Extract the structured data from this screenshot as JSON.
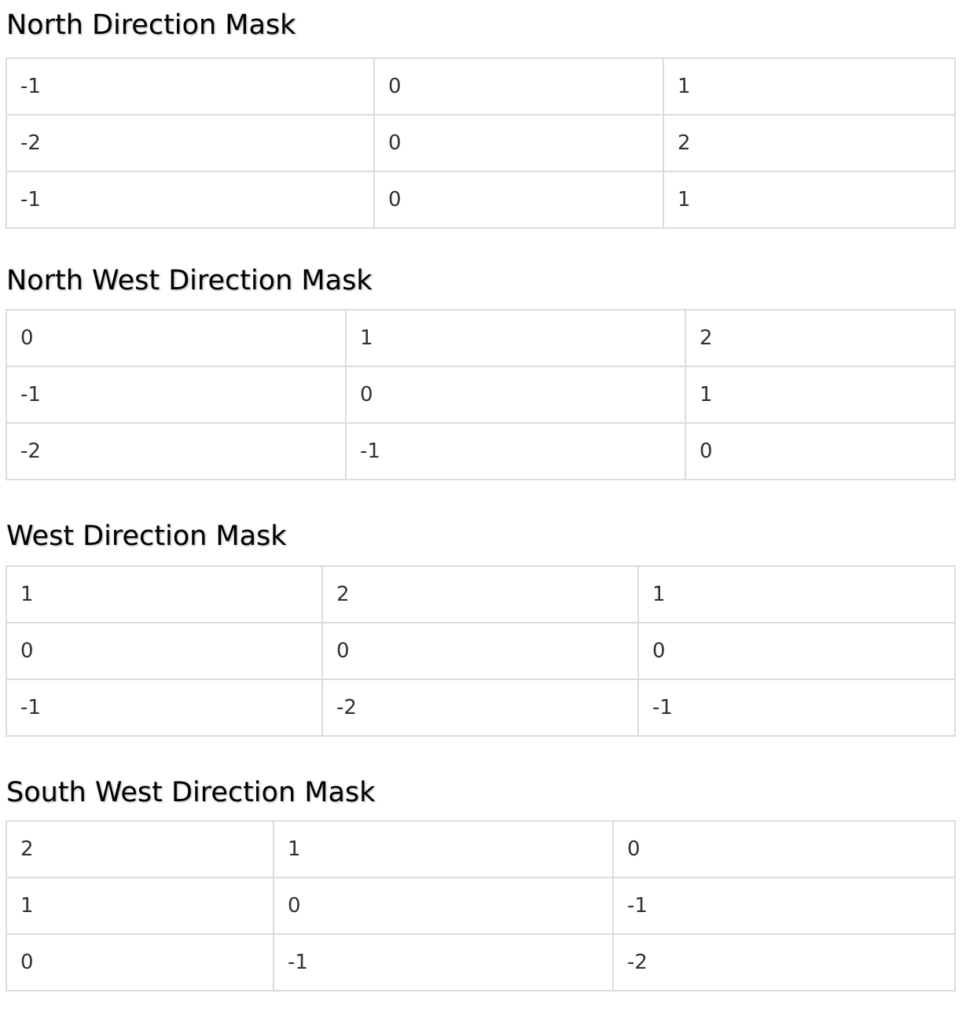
{
  "sections": [
    {
      "title": "North Direction Mask",
      "rows": [
        [
          "-1",
          "0",
          "1"
        ],
        [
          "-2",
          "0",
          "2"
        ],
        [
          "-1",
          "0",
          "1"
        ]
      ]
    },
    {
      "title": "North West Direction Mask",
      "rows": [
        [
          "0",
          "1",
          "2"
        ],
        [
          "-1",
          "0",
          "1"
        ],
        [
          "-2",
          "-1",
          "0"
        ]
      ]
    },
    {
      "title": "West Direction Mask",
      "rows": [
        [
          "1",
          "2",
          "1"
        ],
        [
          "0",
          "0",
          "0"
        ],
        [
          "-1",
          "-2",
          "-1"
        ]
      ]
    },
    {
      "title": "South West Direction Mask",
      "rows": [
        [
          "2",
          "1",
          "0"
        ],
        [
          "1",
          "0",
          "-1"
        ],
        [
          "0",
          "-1",
          "-2"
        ]
      ]
    }
  ]
}
